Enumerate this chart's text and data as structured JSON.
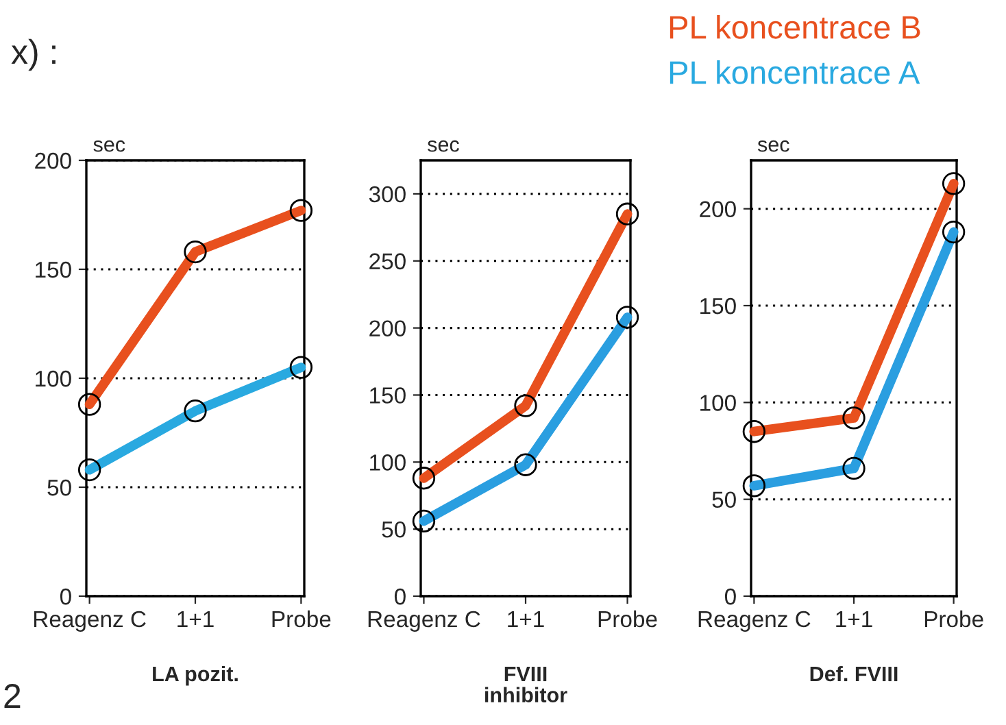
{
  "chart_data": [
    {
      "type": "line",
      "xlabel": "LA pozit.",
      "ylabel": "sec",
      "categories": [
        "Reagenz C",
        "1+1",
        "Probe"
      ],
      "ylim": [
        0,
        200
      ],
      "yticks": [
        0,
        50,
        100,
        150,
        200
      ],
      "grid": "y",
      "marker": "circle",
      "legend": "top",
      "annotations": [
        "x) :",
        "2"
      ],
      "series": [
        {
          "name": "PL koncentrace B",
          "color": "#e8501e",
          "values": [
            88,
            158,
            177
          ]
        },
        {
          "name": "PL koncentrace A",
          "color": "#29a9e0",
          "values": [
            58,
            85,
            105
          ]
        }
      ]
    },
    {
      "type": "line",
      "xlabel": "FVIII\ninhibitor",
      "ylabel": "sec",
      "categories": [
        "Reagenz C",
        "1+1",
        "Probe"
      ],
      "ylim": [
        0,
        325
      ],
      "yticks": [
        0,
        50,
        100,
        150,
        200,
        250,
        300
      ],
      "grid": "y",
      "marker": "circle",
      "series": [
        {
          "color": "#e8501e",
          "values": [
            88,
            142,
            285
          ]
        },
        {
          "color": "#2a9ee0",
          "values": [
            56,
            98,
            208
          ]
        }
      ]
    },
    {
      "type": "line",
      "xlabel": "Def. FVIII",
      "ylabel": "sec",
      "categories": [
        "Reagenz C",
        "1+1",
        "Probe"
      ],
      "ylim": [
        0,
        225
      ],
      "yticks": [
        0,
        50,
        100,
        150,
        200
      ],
      "grid": "y",
      "marker": "circle",
      "series": [
        {
          "color": "#e8501e",
          "values": [
            85,
            92,
            213
          ]
        },
        {
          "color": "#2a9ee0",
          "values": [
            57,
            66,
            188
          ]
        }
      ]
    }
  ]
}
